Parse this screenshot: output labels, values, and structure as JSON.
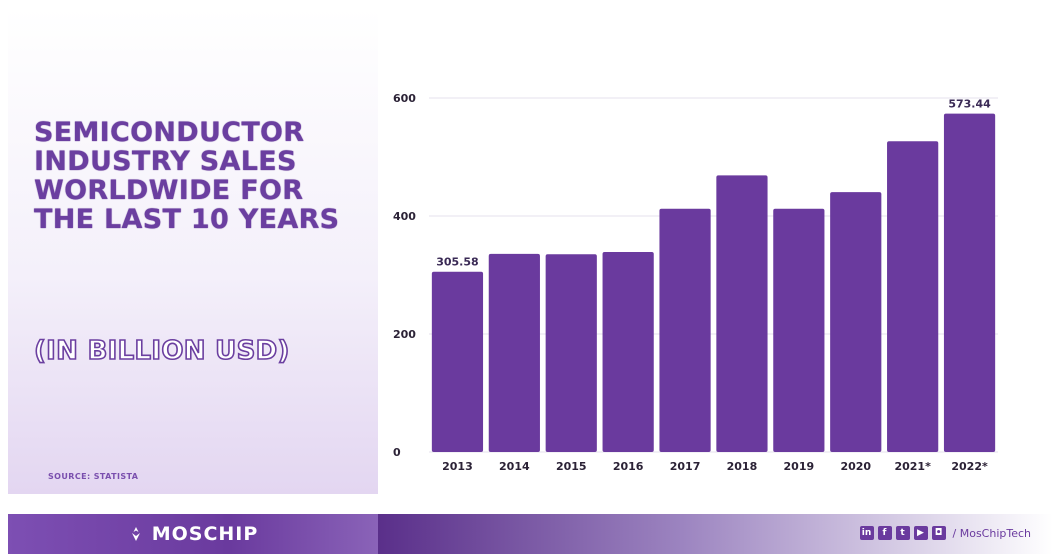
{
  "title": "Semiconductor Industry Sales Worldwide for the last 10 years",
  "subtitle": "(IN BILLION USD)",
  "source": "SOURCE: STATISTA",
  "brand": {
    "logo_text": "MOSCHIP",
    "handle": "/ MosChipTech",
    "social_icons": [
      "linkedin-icon",
      "facebook-icon",
      "twitter-icon",
      "youtube-icon",
      "instagram-icon"
    ],
    "color": "#6a3a9e"
  },
  "chart_data": {
    "type": "bar",
    "categories": [
      "2013",
      "2014",
      "2015",
      "2016",
      "2017",
      "2018",
      "2019",
      "2020",
      "2021*",
      "2022*"
    ],
    "values": [
      305.58,
      335.8,
      335.1,
      338.9,
      412.2,
      468.8,
      412.3,
      440.4,
      526.8,
      573.44
    ],
    "data_labels": [
      "305.58",
      "",
      "",
      "",
      "",
      "",
      "",
      "",
      "",
      "573.44"
    ],
    "yticks": [
      0,
      200,
      400,
      600
    ],
    "ylim": [
      0,
      600
    ],
    "grid": true,
    "bar_color": "#6a3a9e"
  }
}
